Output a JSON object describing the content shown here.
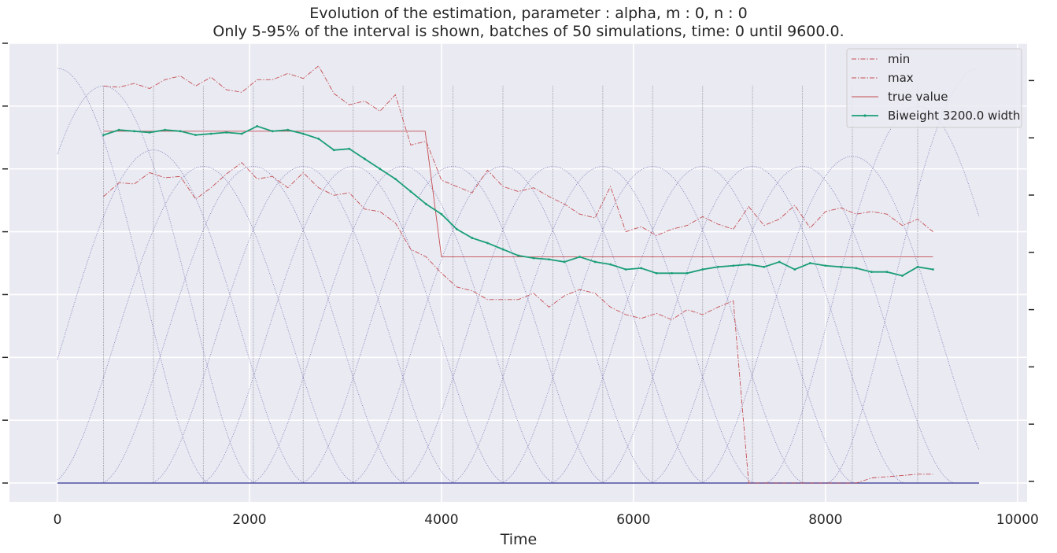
{
  "chart_data": {
    "type": "line",
    "title": "Evolution of the estimation, parameter : alpha, m : 0, n : 0",
    "subtitle": "Only 5-95% of the interval is shown, batches of 50 simulations, time: 0 until 9600.0.",
    "xlabel": "Time",
    "ylabel": "",
    "xlim": [
      -500,
      10100
    ],
    "x_ticks": [
      0,
      2000,
      4000,
      6000,
      8000,
      10000
    ],
    "ylim": [
      -0.15,
      3.5
    ],
    "grid": true,
    "legend_position": "top-right",
    "series": [
      {
        "name": "min",
        "style": "dashdot",
        "color": "#c44e52",
        "x": [
          480,
          640,
          800,
          960,
          1120,
          1280,
          1440,
          1600,
          1760,
          1920,
          2080,
          2240,
          2400,
          2560,
          2720,
          2880,
          3040,
          3200,
          3360,
          3520,
          3680,
          3840,
          4000,
          4160,
          4320,
          4480,
          4640,
          4800,
          4960,
          5120,
          5280,
          5440,
          5600,
          5760,
          5920,
          6080,
          6240,
          6400,
          6560,
          6720,
          6880,
          7040,
          7200,
          7360,
          7520,
          7710,
          7800,
          8000,
          8160,
          8320,
          8480,
          8640,
          8800,
          8960,
          9120
        ],
        "y": [
          2.28,
          2.39,
          2.38,
          2.47,
          2.43,
          2.44,
          2.26,
          2.35,
          2.46,
          2.55,
          2.42,
          2.44,
          2.35,
          2.47,
          2.35,
          2.29,
          2.31,
          2.18,
          2.16,
          2.07,
          1.86,
          1.8,
          1.67,
          1.56,
          1.53,
          1.46,
          1.46,
          1.46,
          1.51,
          1.4,
          1.49,
          1.54,
          1.51,
          1.4,
          1.34,
          1.31,
          1.35,
          1.3,
          1.38,
          1.34,
          1.4,
          1.45,
          0.0,
          0.0,
          0.0,
          0.0,
          0.0,
          0.0,
          0.0,
          0.0,
          0.04,
          0.05,
          0.06,
          0.07,
          0.07
        ]
      },
      {
        "name": "max",
        "style": "dashdot",
        "color": "#c44e52",
        "x": [
          480,
          640,
          800,
          960,
          1120,
          1280,
          1440,
          1600,
          1760,
          1920,
          2080,
          2240,
          2400,
          2560,
          2720,
          2880,
          3040,
          3200,
          3360,
          3520,
          3680,
          3840,
          4000,
          4160,
          4320,
          4480,
          4640,
          4800,
          4960,
          5120,
          5280,
          5440,
          5600,
          5760,
          5920,
          6080,
          6240,
          6400,
          6560,
          6720,
          6880,
          7040,
          7200,
          7360,
          7520,
          7680,
          7840,
          8000,
          8160,
          8320,
          8480,
          8640,
          8800,
          8960,
          9120
        ],
        "y": [
          3.16,
          3.15,
          3.18,
          3.14,
          3.21,
          3.24,
          3.16,
          3.23,
          3.13,
          3.11,
          3.21,
          3.21,
          3.26,
          3.22,
          3.32,
          3.1,
          3.01,
          3.04,
          2.96,
          3.09,
          2.69,
          2.72,
          2.41,
          2.36,
          2.31,
          2.49,
          2.36,
          2.32,
          2.35,
          2.28,
          2.22,
          2.14,
          2.11,
          2.36,
          2.0,
          2.04,
          1.97,
          2.02,
          2.05,
          2.12,
          2.06,
          2.02,
          2.2,
          2.05,
          2.1,
          2.21,
          2.03,
          2.16,
          2.19,
          2.14,
          2.16,
          2.14,
          2.05,
          2.1,
          2.0
        ]
      },
      {
        "name": "true value",
        "style": "solid",
        "color": "#c44e52",
        "x": [
          480,
          3830,
          4000,
          9120
        ],
        "y": [
          2.8,
          2.8,
          1.8,
          1.8
        ]
      },
      {
        "name": "Biweight 3200.0 width",
        "style": "solid",
        "color": "#1a9e77",
        "x": [
          480,
          640,
          800,
          960,
          1120,
          1280,
          1440,
          1600,
          1760,
          1920,
          2080,
          2240,
          2400,
          2560,
          2720,
          2880,
          3040,
          3200,
          3360,
          3520,
          3680,
          3840,
          4000,
          4160,
          4320,
          4480,
          4640,
          4800,
          4960,
          5120,
          5280,
          5440,
          5600,
          5760,
          5920,
          6080,
          6240,
          6400,
          6560,
          6720,
          6880,
          7040,
          7200,
          7360,
          7520,
          7680,
          7840,
          8000,
          8160,
          8320,
          8480,
          8640,
          8800,
          8960,
          9120
        ],
        "y": [
          2.77,
          2.81,
          2.8,
          2.79,
          2.81,
          2.8,
          2.77,
          2.78,
          2.79,
          2.78,
          2.84,
          2.8,
          2.81,
          2.78,
          2.74,
          2.65,
          2.66,
          2.58,
          2.5,
          2.42,
          2.32,
          2.22,
          2.14,
          2.02,
          1.95,
          1.91,
          1.86,
          1.81,
          1.79,
          1.78,
          1.76,
          1.8,
          1.76,
          1.74,
          1.7,
          1.71,
          1.67,
          1.67,
          1.67,
          1.7,
          1.72,
          1.73,
          1.74,
          1.72,
          1.76,
          1.7,
          1.75,
          1.73,
          1.72,
          1.71,
          1.68,
          1.68,
          1.65,
          1.72,
          1.7
        ]
      }
    ],
    "kernels": {
      "style": "dotted",
      "color": "#6a6ab0",
      "width": 3200,
      "centers": [
        0,
        480,
        1000,
        1520,
        2040,
        2560,
        3080,
        3600,
        4120,
        4640,
        5160,
        5680,
        6200,
        6720,
        7240,
        7760,
        8280,
        8960,
        9600
      ],
      "peaks": [
        3.3,
        3.16,
        2.65,
        2.52,
        2.52,
        2.52,
        2.52,
        2.52,
        2.52,
        2.52,
        2.52,
        2.52,
        2.52,
        2.52,
        2.52,
        2.52,
        2.6,
        3.0,
        3.3
      ]
    },
    "vertical_lines": [
      480,
      1000,
      1520,
      2040,
      2560,
      3080,
      3600,
      4120,
      4640,
      5160,
      5680,
      6200,
      6720,
      7240,
      7760,
      8280,
      8960
    ],
    "baseline": {
      "y": 0,
      "x": [
        0,
        9600
      ]
    }
  }
}
